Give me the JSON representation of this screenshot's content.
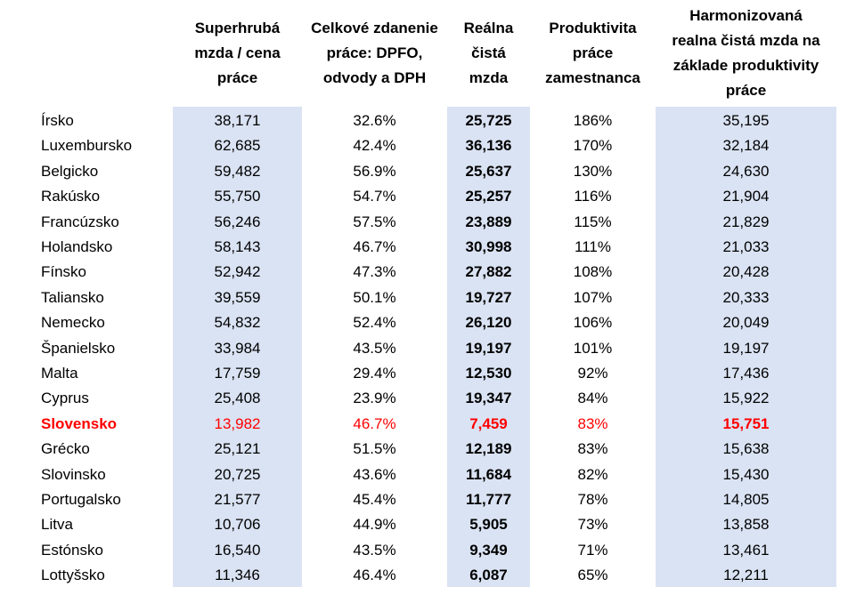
{
  "headers": [
    [
      "Superhrubá",
      "mzda / cena",
      "práce"
    ],
    [
      "Celkové zdanenie",
      "práce: DPFO,",
      "odvody a DPH"
    ],
    [
      "Reálna",
      "čistá",
      "mzda"
    ],
    [
      "Produktivita",
      "práce",
      "zamestnanca"
    ],
    [
      "Harmonizovaná",
      "realna čistá mzda na",
      "základe produktivity",
      "práce"
    ]
  ],
  "highlight_color": "#ff0000",
  "shade_color": "#dae3f3",
  "rows": [
    {
      "country": "Írsko",
      "superhruba": "38,171",
      "zdanenie": "32.6%",
      "realna": "25,725",
      "produktivita": "186%",
      "harmonizovana": "35,195"
    },
    {
      "country": "Luxembursko",
      "superhruba": "62,685",
      "zdanenie": "42.4%",
      "realna": "36,136",
      "produktivita": "170%",
      "harmonizovana": "32,184"
    },
    {
      "country": "Belgicko",
      "superhruba": "59,482",
      "zdanenie": "56.9%",
      "realna": "25,637",
      "produktivita": "130%",
      "harmonizovana": "24,630"
    },
    {
      "country": "Rakúsko",
      "superhruba": "55,750",
      "zdanenie": "54.7%",
      "realna": "25,257",
      "produktivita": "116%",
      "harmonizovana": "21,904"
    },
    {
      "country": "Francúzsko",
      "superhruba": "56,246",
      "zdanenie": "57.5%",
      "realna": "23,889",
      "produktivita": "115%",
      "harmonizovana": "21,829"
    },
    {
      "country": "Holandsko",
      "superhruba": "58,143",
      "zdanenie": "46.7%",
      "realna": "30,998",
      "produktivita": "111%",
      "harmonizovana": "21,033"
    },
    {
      "country": "Fínsko",
      "superhruba": "52,942",
      "zdanenie": "47.3%",
      "realna": "27,882",
      "produktivita": "108%",
      "harmonizovana": "20,428"
    },
    {
      "country": "Taliansko",
      "superhruba": "39,559",
      "zdanenie": "50.1%",
      "realna": "19,727",
      "produktivita": "107%",
      "harmonizovana": "20,333"
    },
    {
      "country": "Nemecko",
      "superhruba": "54,832",
      "zdanenie": "52.4%",
      "realna": "26,120",
      "produktivita": "106%",
      "harmonizovana": "20,049"
    },
    {
      "country": "Španielsko",
      "superhruba": "33,984",
      "zdanenie": "43.5%",
      "realna": "19,197",
      "produktivita": "101%",
      "harmonizovana": "19,197"
    },
    {
      "country": "Malta",
      "superhruba": "17,759",
      "zdanenie": "29.4%",
      "realna": "12,530",
      "produktivita": "92%",
      "harmonizovana": "17,436"
    },
    {
      "country": "Cyprus",
      "superhruba": "25,408",
      "zdanenie": "23.9%",
      "realna": "19,347",
      "produktivita": "84%",
      "harmonizovana": "15,922"
    },
    {
      "country": "Slovensko",
      "superhruba": "13,982",
      "zdanenie": "46.7%",
      "realna": "7,459",
      "produktivita": "83%",
      "harmonizovana": "15,751",
      "highlight": true
    },
    {
      "country": "Grécko",
      "superhruba": "25,121",
      "zdanenie": "51.5%",
      "realna": "12,189",
      "produktivita": "83%",
      "harmonizovana": "15,638"
    },
    {
      "country": "Slovinsko",
      "superhruba": "20,725",
      "zdanenie": "43.6%",
      "realna": "11,684",
      "produktivita": "82%",
      "harmonizovana": "15,430"
    },
    {
      "country": "Portugalsko",
      "superhruba": "21,577",
      "zdanenie": "45.4%",
      "realna": "11,777",
      "produktivita": "78%",
      "harmonizovana": "14,805"
    },
    {
      "country": "Litva",
      "superhruba": "10,706",
      "zdanenie": "44.9%",
      "realna": "5,905",
      "produktivita": "73%",
      "harmonizovana": "13,858"
    },
    {
      "country": "Estónsko",
      "superhruba": "16,540",
      "zdanenie": "43.5%",
      "realna": "9,349",
      "produktivita": "71%",
      "harmonizovana": "13,461"
    },
    {
      "country": "Lottyšsko",
      "superhruba": "11,346",
      "zdanenie": "46.4%",
      "realna": "6,087",
      "produktivita": "65%",
      "harmonizovana": "12,211"
    }
  ]
}
